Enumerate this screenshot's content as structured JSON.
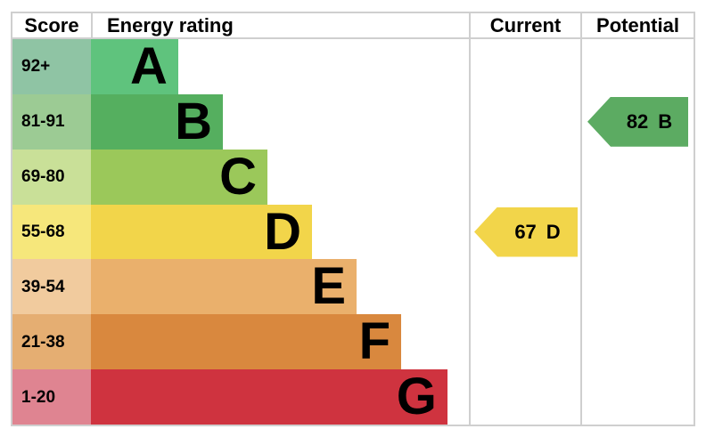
{
  "chart_data": {
    "type": "bar",
    "title": "",
    "columns": {
      "score": "Score",
      "energy": "Energy rating",
      "current": "Current",
      "potential": "Potential"
    },
    "bands": [
      {
        "grade": "A",
        "score_range": "92+",
        "bar_color": "#5fc37d",
        "score_bg": "#8fc4a4",
        "bar_width_pct": 23.1
      },
      {
        "grade": "B",
        "score_range": "81-91",
        "bar_color": "#55af5f",
        "score_bg": "#9ccb94",
        "bar_width_pct": 34.9
      },
      {
        "grade": "C",
        "score_range": "69-80",
        "bar_color": "#9bc85a",
        "score_bg": "#c9e098",
        "bar_width_pct": 46.7
      },
      {
        "grade": "D",
        "score_range": "55-68",
        "bar_color": "#f2d54a",
        "score_bg": "#f6e77b",
        "bar_width_pct": 58.5
      },
      {
        "grade": "E",
        "score_range": "39-54",
        "bar_color": "#eab06c",
        "score_bg": "#f1cb9e",
        "bar_width_pct": 70.3
      },
      {
        "grade": "F",
        "score_range": "21-38",
        "bar_color": "#d9883e",
        "score_bg": "#e5ae72",
        "bar_width_pct": 82.1
      },
      {
        "grade": "G",
        "score_range": "1-20",
        "bar_color": "#cf333f",
        "score_bg": "#df8491",
        "bar_width_pct": 94.3
      }
    ],
    "markers": {
      "current": {
        "value": "67",
        "grade": "D",
        "color": "#f2d54a",
        "band": "D"
      },
      "potential": {
        "value": "82",
        "grade": "B",
        "color": "#5cab62",
        "band": "B"
      }
    },
    "layout_hints": {
      "legend": "none",
      "grid": "off",
      "border_color": "#cfcfcf",
      "text_color": "#000000",
      "background": "#ffffff"
    }
  }
}
